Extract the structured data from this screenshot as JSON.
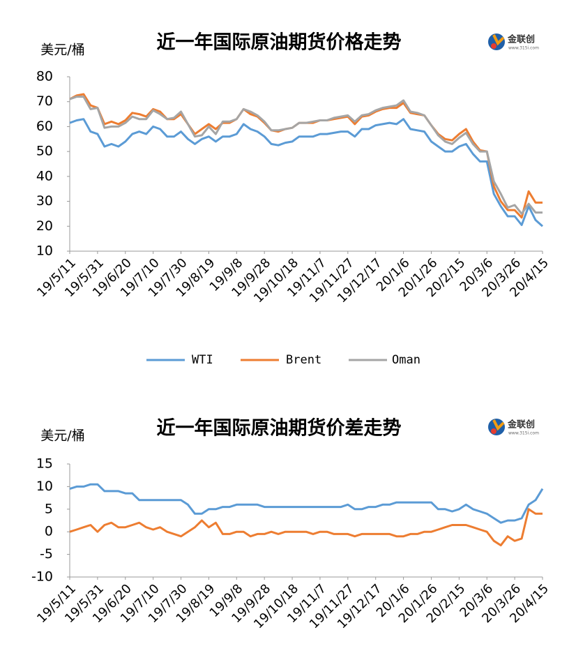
{
  "chart_data": [
    {
      "type": "line",
      "title": "近一年国际原油期货价格走势",
      "y_label": "美元/桶",
      "logo": {
        "name": "金联创",
        "url": "www.315i.com"
      },
      "categories": [
        "19/5/11",
        null,
        null,
        null,
        "19/5/31",
        null,
        null,
        null,
        "19/6/20",
        null,
        null,
        null,
        "19/7/10",
        null,
        null,
        null,
        "19/7/30",
        null,
        null,
        null,
        "19/8/19",
        null,
        null,
        null,
        "19/9/8",
        null,
        null,
        null,
        "19/9/28",
        null,
        null,
        null,
        "19/10/18",
        null,
        null,
        null,
        "19/11/7",
        null,
        null,
        null,
        "19/11/27",
        null,
        null,
        null,
        "19/12/17",
        null,
        null,
        null,
        "20/1/6",
        null,
        null,
        null,
        "20/1/26",
        null,
        null,
        null,
        "20/2/15",
        null,
        null,
        null,
        "20/3/6",
        null,
        null,
        null,
        "20/3/26",
        null,
        null,
        null,
        "20/4/15"
      ],
      "series": [
        {
          "name": "WTI",
          "color": "#5b9bd5",
          "values": [
            61.5,
            62.5,
            63,
            58,
            57,
            52,
            53,
            52,
            54,
            57,
            58,
            57,
            60,
            59,
            56,
            56,
            58,
            55,
            53,
            55,
            56,
            54,
            56,
            56,
            57,
            61,
            59,
            58,
            56,
            53,
            52.5,
            53.5,
            54,
            56,
            56,
            56,
            57,
            57,
            57.5,
            58,
            58,
            56,
            59,
            59,
            60.5,
            61,
            61.5,
            61,
            63,
            59,
            58.5,
            58,
            54,
            52,
            50,
            50,
            52,
            53,
            49,
            46,
            46,
            33,
            28,
            24,
            24,
            20.5,
            28,
            22.5,
            20
          ]
        },
        {
          "name": "Brent",
          "color": "#ed7d31",
          "values": [
            71,
            72.5,
            73,
            68.5,
            67.5,
            61,
            62,
            61,
            62.5,
            65.5,
            65,
            64,
            67,
            66,
            63,
            63,
            65,
            61,
            57,
            59,
            61,
            59,
            61.5,
            61.5,
            63,
            67,
            65,
            64,
            61.5,
            58.5,
            58,
            59,
            59.5,
            61.5,
            61.5,
            61.5,
            62.5,
            62.5,
            63,
            63.5,
            64,
            61,
            64,
            64.5,
            66,
            67,
            67.5,
            67.5,
            69.5,
            65.5,
            65,
            64.5,
            60.5,
            57,
            55,
            54.5,
            57,
            59,
            54,
            50.5,
            50,
            36,
            30,
            26.5,
            26.5,
            23.5,
            34,
            29.5,
            29.5
          ]
        },
        {
          "name": "Oman",
          "color": "#a5a5a5",
          "values": [
            71,
            72,
            72,
            67,
            67.5,
            59.5,
            60,
            60,
            61.5,
            64,
            63,
            63,
            66.5,
            65,
            63,
            63.5,
            66,
            61,
            56,
            56.5,
            60,
            57,
            62,
            62,
            63,
            67,
            66,
            64.5,
            62,
            58.5,
            58.5,
            59,
            59.5,
            61.5,
            61.5,
            62,
            62.5,
            62.5,
            63.5,
            64,
            64.5,
            62,
            64.5,
            65,
            66.5,
            67.5,
            68,
            68.5,
            70.5,
            66,
            65.5,
            64.5,
            60.5,
            56.5,
            54,
            53,
            55.5,
            57.5,
            53,
            50,
            50,
            38,
            33,
            27.5,
            28.5,
            25,
            29,
            25.5,
            25.5
          ]
        }
      ],
      "ylim": [
        10,
        80
      ],
      "yticks": [
        10,
        20,
        30,
        40,
        50,
        60,
        70,
        80
      ],
      "legend": "bottom"
    },
    {
      "type": "line",
      "title": "近一年国际原油期货价差走势",
      "y_label": "美元/桶",
      "logo": {
        "name": "金联创",
        "url": "www.315i.com"
      },
      "categories": [
        "19/5/11",
        null,
        null,
        null,
        "19/5/31",
        null,
        null,
        null,
        "19/6/20",
        null,
        null,
        null,
        "19/7/10",
        null,
        null,
        null,
        "19/7/30",
        null,
        null,
        null,
        "19/8/19",
        null,
        null,
        null,
        "19/9/8",
        null,
        null,
        null,
        "19/9/28",
        null,
        null,
        null,
        "19/10/18",
        null,
        null,
        null,
        "19/11/7",
        null,
        null,
        null,
        "19/11/27",
        null,
        null,
        null,
        "19/12/17",
        null,
        null,
        null,
        "20/1/6",
        null,
        null,
        null,
        "20/1/26",
        null,
        null,
        null,
        "20/2/15",
        null,
        null,
        null,
        "20/3/6",
        null,
        null,
        null,
        "20/3/26",
        null,
        null,
        null,
        "20/4/15"
      ],
      "series": [
        {
          "color": "#5b9bd5",
          "values": [
            9.5,
            10,
            10,
            10.5,
            10.5,
            9,
            9,
            9,
            8.5,
            8.5,
            7,
            7,
            7,
            7,
            7,
            7,
            7,
            6,
            4,
            4,
            5,
            5,
            5.5,
            5.5,
            6,
            6,
            6,
            6,
            5.5,
            5.5,
            5.5,
            5.5,
            5.5,
            5.5,
            5.5,
            5.5,
            5.5,
            5.5,
            5.5,
            5.5,
            6,
            5,
            5,
            5.5,
            5.5,
            6,
            6,
            6.5,
            6.5,
            6.5,
            6.5,
            6.5,
            6.5,
            5,
            5,
            4.5,
            5,
            6,
            5,
            4.5,
            4,
            3,
            2,
            2.5,
            2.5,
            3,
            6,
            7,
            9.5
          ]
        },
        {
          "color": "#ed7d31",
          "values": [
            0,
            0.5,
            1,
            1.5,
            0,
            1.5,
            2,
            1,
            1,
            1.5,
            2,
            1,
            0.5,
            1,
            0,
            -0.5,
            -1,
            0,
            1,
            2.5,
            1,
            2,
            -0.5,
            -0.5,
            0,
            0,
            -1,
            -0.5,
            -0.5,
            0,
            -0.5,
            0,
            0,
            0,
            0,
            -0.5,
            0,
            0,
            -0.5,
            -0.5,
            -0.5,
            -1,
            -0.5,
            -0.5,
            -0.5,
            -0.5,
            -0.5,
            -1,
            -1,
            -0.5,
            -0.5,
            0,
            0,
            0.5,
            1,
            1.5,
            1.5,
            1.5,
            1,
            0.5,
            0,
            -2,
            -3,
            -1,
            -2,
            -1.5,
            5,
            4,
            4
          ]
        }
      ],
      "ylim": [
        -10,
        15
      ],
      "yticks": [
        -10,
        -5,
        0,
        5,
        10,
        15
      ]
    }
  ]
}
